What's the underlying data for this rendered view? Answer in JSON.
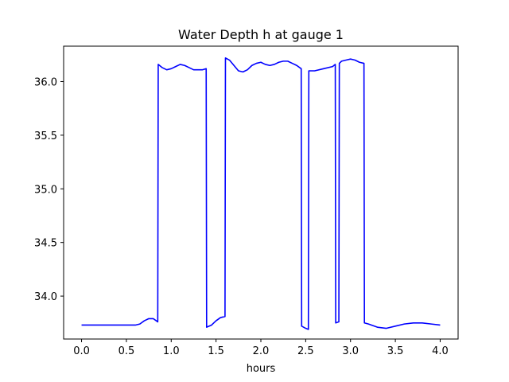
{
  "chart_data": {
    "type": "line",
    "title": "Water Depth h at gauge 1",
    "xlabel": "hours",
    "ylabel": "",
    "xlim": [
      -0.2,
      4.2
    ],
    "ylim": [
      33.6,
      36.33
    ],
    "grid": false,
    "xticks": [
      0.0,
      0.5,
      1.0,
      1.5,
      2.0,
      2.5,
      3.0,
      3.5,
      4.0
    ],
    "xtick_labels": [
      "0.0",
      "0.5",
      "1.0",
      "1.5",
      "2.0",
      "2.5",
      "3.0",
      "3.5",
      "4.0"
    ],
    "yticks": [
      34.0,
      34.5,
      35.0,
      35.5,
      36.0
    ],
    "ytick_labels": [
      "34.0",
      "34.5",
      "35.0",
      "35.5",
      "36.0"
    ],
    "series": [
      {
        "color": "#0000ff",
        "x": [
          0.0,
          0.2,
          0.4,
          0.6,
          0.65,
          0.7,
          0.75,
          0.8,
          0.85,
          0.855,
          0.9,
          0.95,
          1.0,
          1.05,
          1.1,
          1.15,
          1.2,
          1.25,
          1.3,
          1.35,
          1.39,
          1.395,
          1.45,
          1.5,
          1.55,
          1.6,
          1.605,
          1.65,
          1.7,
          1.75,
          1.8,
          1.85,
          1.9,
          1.95,
          2.0,
          2.05,
          2.1,
          2.15,
          2.2,
          2.25,
          2.3,
          2.35,
          2.4,
          2.45,
          2.455,
          2.5,
          2.53,
          2.535,
          2.6,
          2.7,
          2.8,
          2.83,
          2.835,
          2.87,
          2.875,
          2.9,
          2.95,
          3.0,
          3.05,
          3.1,
          3.15,
          3.155,
          3.2,
          3.3,
          3.4,
          3.5,
          3.6,
          3.7,
          3.8,
          3.9,
          4.0
        ],
        "y": [
          33.73,
          33.73,
          33.73,
          33.73,
          33.74,
          33.77,
          33.79,
          33.79,
          33.76,
          36.16,
          36.13,
          36.11,
          36.12,
          36.14,
          36.16,
          36.15,
          36.13,
          36.11,
          36.11,
          36.11,
          36.12,
          33.71,
          33.73,
          33.77,
          33.8,
          33.81,
          36.22,
          36.2,
          36.15,
          36.1,
          36.09,
          36.11,
          36.15,
          36.17,
          36.18,
          36.16,
          36.15,
          36.16,
          36.18,
          36.19,
          36.19,
          36.17,
          36.15,
          36.12,
          33.72,
          33.7,
          33.69,
          36.1,
          36.1,
          36.12,
          36.14,
          36.16,
          33.75,
          33.76,
          36.17,
          36.19,
          36.2,
          36.21,
          36.2,
          36.18,
          36.17,
          33.75,
          33.74,
          33.71,
          33.7,
          33.72,
          33.74,
          33.75,
          33.75,
          33.74,
          33.73
        ]
      }
    ]
  }
}
